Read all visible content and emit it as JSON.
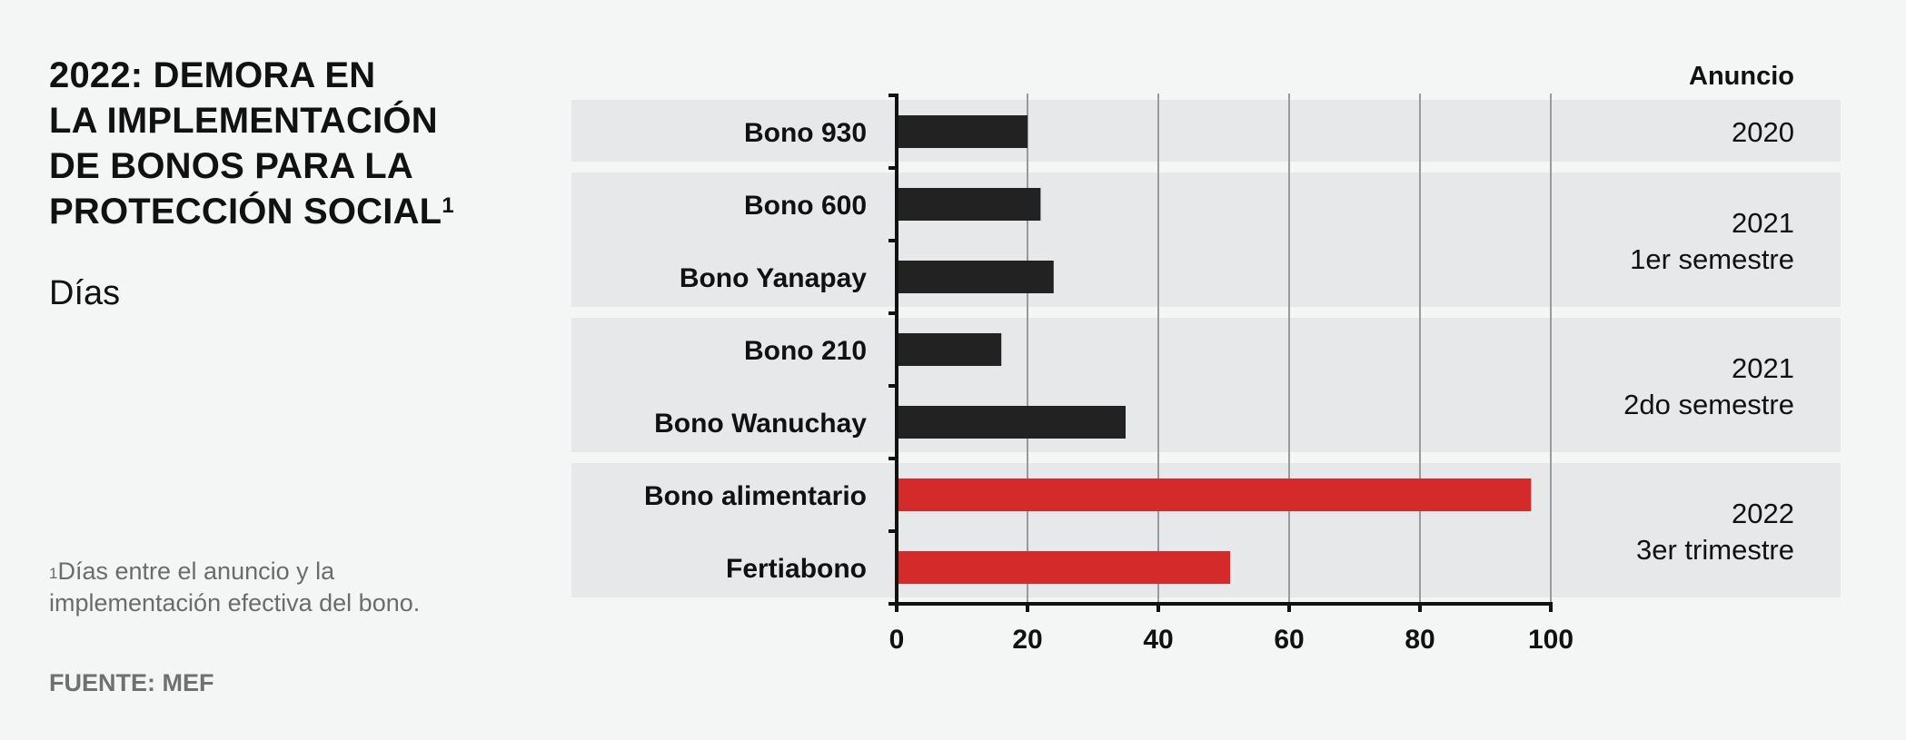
{
  "title": "2022: DEMORA EN LA IMPLEMENTACIÓN DE BONOS PARA LA PROTECCIÓN SOCIAL",
  "title_lines": [
    "2022: DEMORA EN",
    "LA IMPLEMENTACIÓN",
    "DE BONOS PARA LA",
    "PROTECCIÓN SOCIAL"
  ],
  "title_footnote_mark": "1",
  "unit_label": "Días",
  "footnote_mark": "1",
  "footnote": "Días entre el anuncio y la implementación efectiva del bono.",
  "source": "FUENTE: MEF",
  "colors": {
    "default_bar": "#222222",
    "highlight_bar": "#d42a2a",
    "band": "#e7e8e9",
    "gridline": "#9a9a9a",
    "axis": "#111111"
  },
  "chart_data": {
    "type": "bar",
    "orientation": "horizontal",
    "categories": [
      "Bono 930",
      "Bono 600",
      "Bono Yanapay",
      "Bono 210",
      "Bono Wanuchay",
      "Bono alimentario",
      "Fertiabono"
    ],
    "values": [
      20,
      22,
      24,
      16,
      35,
      97,
      51
    ],
    "highlight": [
      false,
      false,
      false,
      false,
      false,
      true,
      true
    ],
    "xlim": [
      0,
      100
    ],
    "xticks": [
      0,
      20,
      40,
      60,
      80,
      100
    ],
    "grid": true,
    "annotation_header": "Anuncio",
    "groups": [
      {
        "lines": [
          "2020"
        ],
        "categories": [
          "Bono 930"
        ]
      },
      {
        "lines": [
          "2021",
          "1er semestre"
        ],
        "categories": [
          "Bono 600",
          "Bono Yanapay"
        ]
      },
      {
        "lines": [
          "2021",
          "2do semestre"
        ],
        "categories": [
          "Bono 210",
          "Bono Wanuchay"
        ]
      },
      {
        "lines": [
          "2022",
          "3er trimestre"
        ],
        "categories": [
          "Bono alimentario",
          "Fertiabono"
        ]
      }
    ]
  }
}
